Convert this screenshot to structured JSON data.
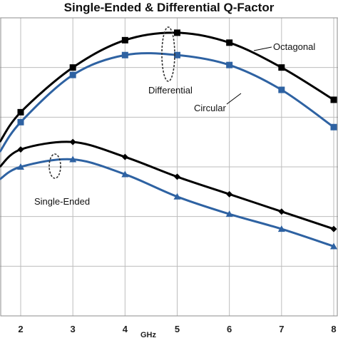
{
  "chart_data": {
    "type": "line",
    "title": "Single-Ended & Differential Q-Factor",
    "xlabel": "GHz",
    "ylabel": "",
    "x_ticks": [
      2,
      3,
      4,
      5,
      6,
      7,
      8
    ],
    "xlim": [
      1.6,
      8.0
    ],
    "ylim": [
      0,
      6
    ],
    "grid": true,
    "y_tick_labels_visible": false,
    "series": [
      {
        "name": "Octagonal",
        "group": "Differential",
        "color": "#000000",
        "marker": "square",
        "x": [
          1.6,
          2.0,
          3.0,
          4.0,
          5.0,
          6.0,
          7.0,
          8.0
        ],
        "y": [
          3.5,
          4.1,
          5.0,
          5.55,
          5.7,
          5.5,
          5.0,
          4.35
        ]
      },
      {
        "name": "Circular",
        "group": "Differential",
        "color": "#2e62a2",
        "marker": "square",
        "x": [
          1.6,
          2.0,
          3.0,
          4.0,
          5.0,
          6.0,
          7.0,
          8.0
        ],
        "y": [
          3.3,
          3.9,
          4.85,
          5.25,
          5.25,
          5.05,
          4.55,
          3.8
        ]
      },
      {
        "series_group_label": "Single-Ended",
        "name": "",
        "group": "Single-Ended",
        "color": "#000000",
        "marker": "diamond",
        "x": [
          1.6,
          2.0,
          3.0,
          4.0,
          5.0,
          6.0,
          7.0,
          8.0
        ],
        "y": [
          3.0,
          3.35,
          3.5,
          3.2,
          2.8,
          2.45,
          2.1,
          1.75
        ]
      },
      {
        "name": "",
        "group": "Single-Ended",
        "color": "#2e62a2",
        "marker": "triangle",
        "x": [
          1.6,
          2.0,
          3.0,
          4.0,
          5.0,
          6.0,
          7.0,
          8.0
        ],
        "y": [
          2.75,
          3.0,
          3.15,
          2.85,
          2.4,
          2.05,
          1.75,
          1.4
        ]
      }
    ],
    "annotations": {
      "differential": "Differential",
      "octagonal": "Octagonal",
      "circular": "Circular",
      "single_ended": "Single-Ended"
    }
  }
}
